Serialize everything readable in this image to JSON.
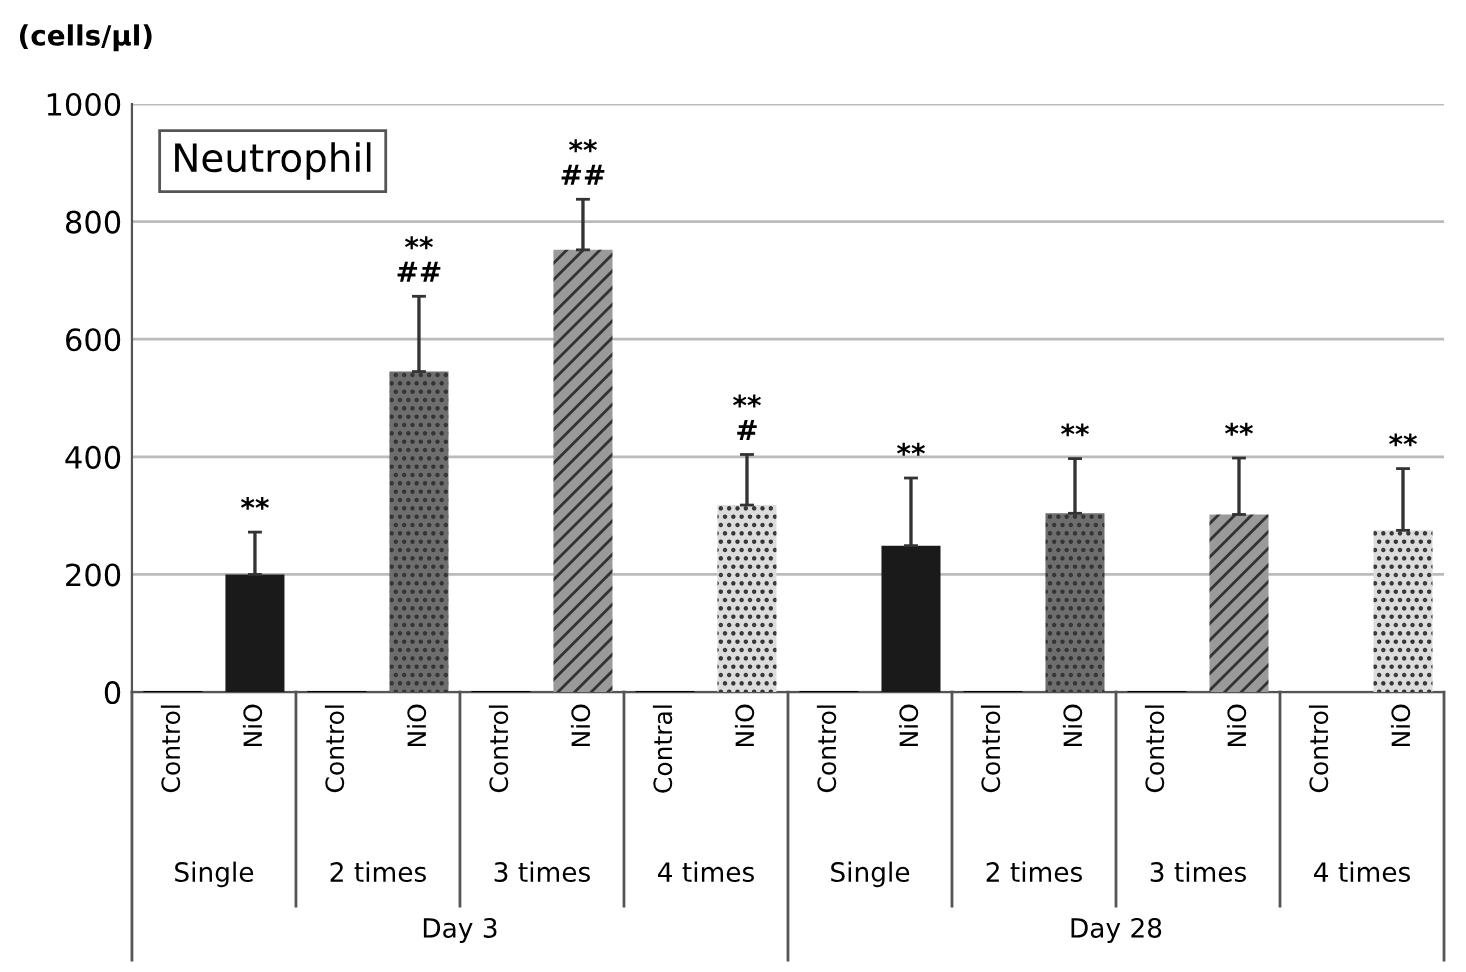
{
  "chart_data": {
    "type": "bar",
    "title": "Neutrophil",
    "ylabel": "(cells/μl)",
    "categories": [
      "Control",
      "NiO",
      "Control",
      "NiO",
      "Control",
      "NiO",
      "Contral",
      "NiO",
      "Control",
      "NiO",
      "Control",
      "NiO",
      "Control",
      "NiO",
      "Control",
      "NiO"
    ],
    "values": [
      2,
      200,
      2,
      545,
      2,
      752,
      2,
      318,
      2,
      249,
      2,
      304,
      2,
      302,
      0,
      275
    ],
    "errors": [
      null,
      [
        200,
        272
      ],
      null,
      [
        545,
        673
      ],
      null,
      [
        752,
        838
      ],
      null,
      [
        318,
        404
      ],
      null,
      [
        249,
        364
      ],
      null,
      [
        304,
        397
      ],
      null,
      [
        302,
        398
      ],
      null,
      [
        275,
        380
      ]
    ],
    "colors": [
      "#000000",
      "#1a1a1a",
      "#000000",
      "#6e6e6e",
      "#000000",
      "#9a9a9a",
      "#000000",
      "#dcdcdc",
      "#000000",
      "#1a1a1a",
      "#000000",
      "#6e6e6e",
      "#000000",
      "#9a9a9a",
      "#000000",
      "#dcdcdc"
    ],
    "ylim": [
      0,
      1000
    ],
    "yticks": [
      0,
      200,
      400,
      600,
      800,
      1000
    ],
    "grid": "y",
    "annotations": [
      "**",
      "**\n##",
      "**\n##",
      "**\n#",
      "**",
      "**",
      "**",
      "**",
      "Single",
      "2 times",
      "3 times",
      "4 times",
      "Single",
      "2 times",
      "3 times",
      "4 times",
      "Day 3",
      "Day 28"
    ]
  }
}
